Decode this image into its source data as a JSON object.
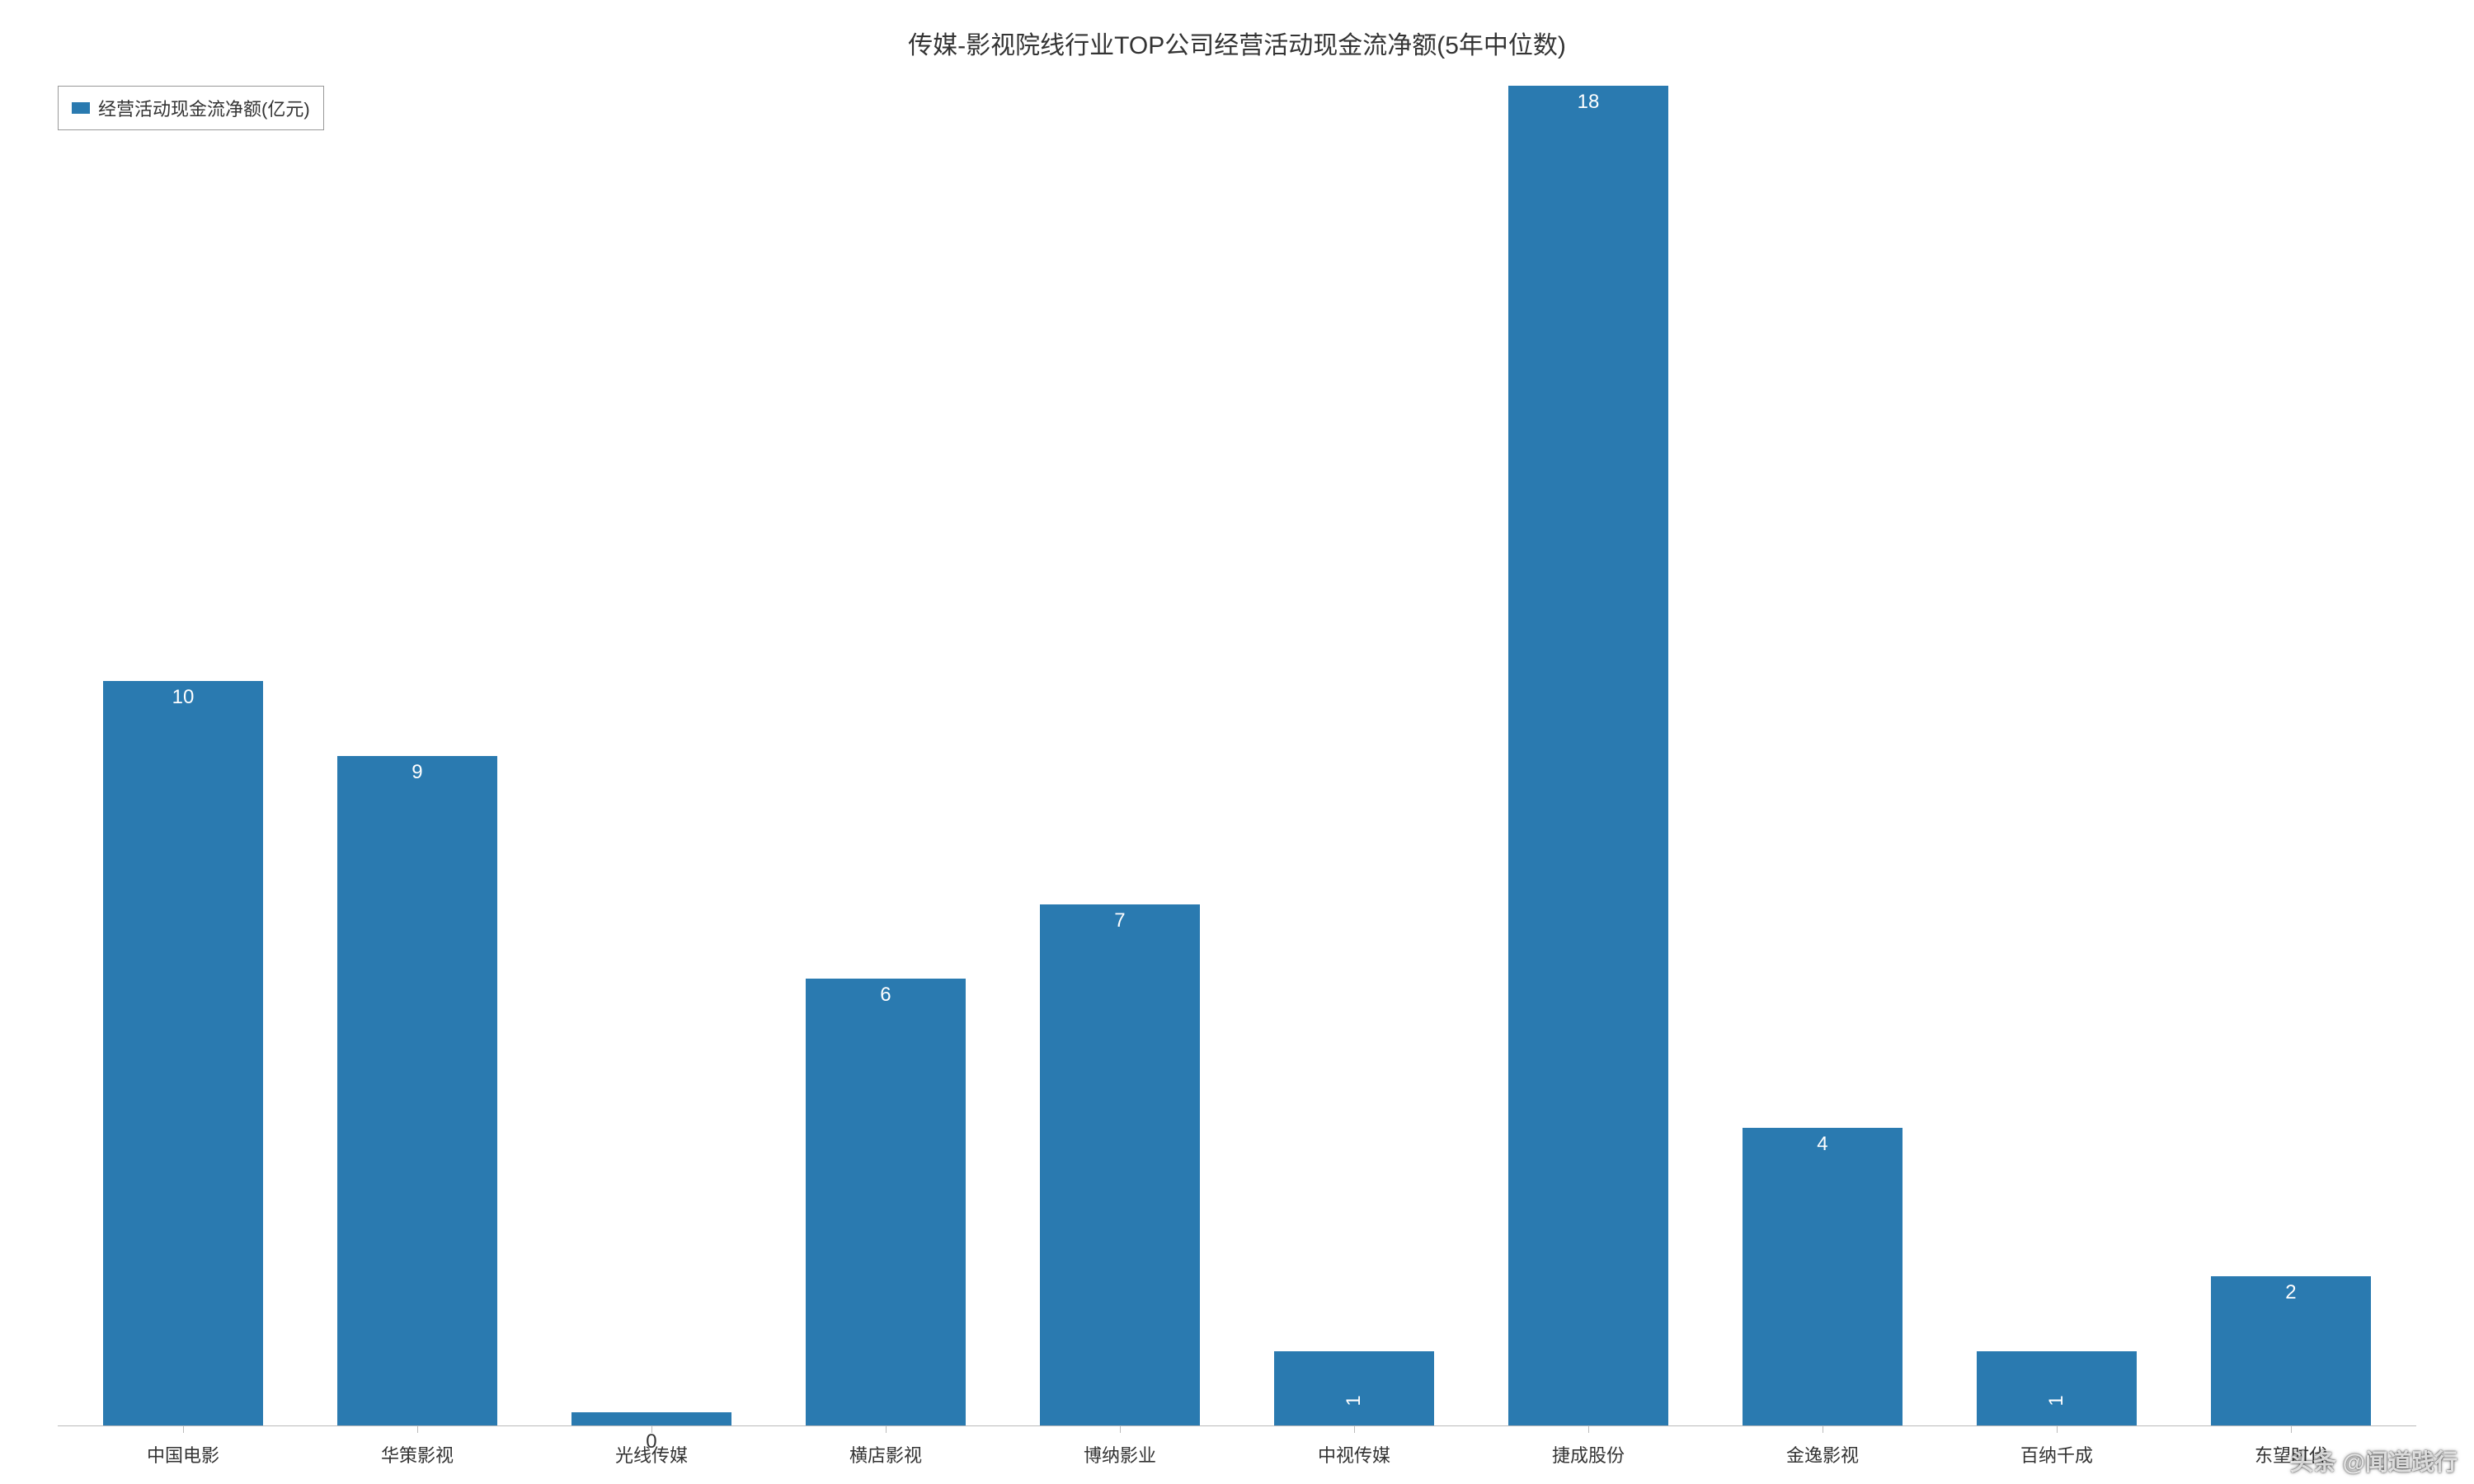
{
  "chart": {
    "type": "bar",
    "title": "传媒-影视院线行业TOP公司经营活动现金流净额(5年中位数)",
    "title_fontsize": 30,
    "title_color": "#333333",
    "legend": {
      "label": "经营活动现金流净额(亿元)",
      "swatch_color": "#2a7ab0",
      "border_color": "#999999",
      "label_fontsize": 22,
      "position": "top-left"
    },
    "categories": [
      "中国电影",
      "华策影视",
      "光线传媒",
      "横店影视",
      "博纳影业",
      "中视传媒",
      "捷成股份",
      "金逸影视",
      "百纳千成",
      "东望时代"
    ],
    "values": [
      10,
      9,
      0,
      6,
      7,
      1,
      18,
      4,
      1,
      2
    ],
    "bar_color": "#2a7ab0",
    "value_label_color_inside": "#ffffff",
    "value_label_color_outside": "#333333",
    "value_label_fontsize": 24,
    "x_label_fontsize": 22,
    "x_label_color": "#333333",
    "axis_line_color": "#bbbbbb",
    "background_color": "#ffffff",
    "y_max": 18,
    "bar_width_ratio": 0.68,
    "small_threshold": 1,
    "zero_label_below": true
  },
  "watermark": "头条 @闻道践行",
  "watermark_fontsize": 28
}
